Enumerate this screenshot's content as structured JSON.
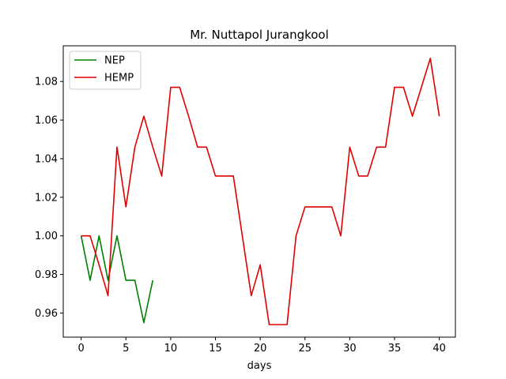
{
  "chart_data": {
    "type": "line",
    "title": "Mr. Nuttapol Jurangkool",
    "xlabel": "days",
    "ylabel": "",
    "xlim": [
      -2,
      41.8
    ],
    "ylim": [
      0.9475,
      1.0985
    ],
    "xticks": [
      0,
      5,
      10,
      15,
      20,
      25,
      30,
      35,
      40
    ],
    "xtick_labels": [
      "0",
      "5",
      "10",
      "15",
      "20",
      "25",
      "30",
      "35",
      "40"
    ],
    "yticks": [
      0.96,
      0.98,
      1.0,
      1.02,
      1.04,
      1.06,
      1.08
    ],
    "ytick_labels": [
      "0.96",
      "0.98",
      "1.00",
      "1.02",
      "1.04",
      "1.06",
      "1.08"
    ],
    "grid": false,
    "legend_position": "top-left",
    "series": [
      {
        "name": "NEP",
        "color": "#008000",
        "x": [
          0,
          1,
          2,
          3,
          4,
          5,
          6,
          7,
          8
        ],
        "y": [
          1.0,
          0.977,
          1.0,
          0.977,
          1.0,
          0.977,
          0.977,
          0.955,
          0.977
        ]
      },
      {
        "name": "HEMP",
        "color": "#e00000",
        "x": [
          0,
          1,
          2,
          3,
          4,
          5,
          6,
          7,
          8,
          9,
          10,
          11,
          12,
          13,
          14,
          15,
          16,
          17,
          18,
          19,
          20,
          21,
          22,
          23,
          24,
          25,
          26,
          27,
          28,
          29,
          30,
          31,
          32,
          33,
          34,
          35,
          36,
          37,
          38,
          39,
          40
        ],
        "y": [
          1.0,
          1.0,
          0.985,
          0.969,
          1.046,
          1.015,
          1.046,
          1.062,
          1.046,
          1.031,
          1.077,
          1.077,
          1.062,
          1.046,
          1.046,
          1.031,
          1.031,
          1.031,
          1.0,
          0.969,
          0.985,
          0.954,
          0.954,
          0.954,
          1.0,
          1.015,
          1.015,
          1.015,
          1.015,
          1.0,
          1.046,
          1.031,
          1.031,
          1.046,
          1.046,
          1.077,
          1.077,
          1.062,
          1.077,
          1.092,
          1.062
        ]
      }
    ]
  }
}
